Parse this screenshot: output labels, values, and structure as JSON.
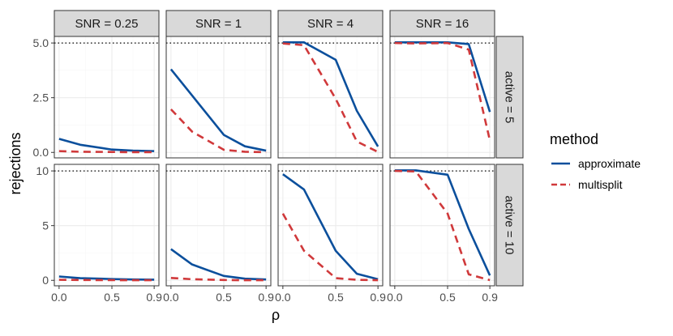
{
  "chart_data": {
    "type": "line",
    "xlabel": "ρ",
    "ylabel": "rejections",
    "x": [
      0.0,
      0.2,
      0.5,
      0.7,
      0.9
    ],
    "x_tick_labels": [
      "0.0",
      "0.5",
      "0.9"
    ],
    "x_ticks": [
      0.0,
      0.5,
      0.9
    ],
    "columns": [
      "SNR = 0.25",
      "SNR = 1",
      "SNR = 4",
      "SNR = 16"
    ],
    "rows": [
      {
        "label": "active = 5",
        "ylim": [
          -0.25,
          5.3
        ],
        "yticks": [
          0.0,
          2.5,
          5.0
        ],
        "ytick_labels": [
          "0.0",
          "2.5",
          "5.0"
        ],
        "reference": 5
      },
      {
        "label": "active = 10",
        "ylim": [
          -0.5,
          10.6
        ],
        "yticks": [
          0,
          5,
          10
        ],
        "ytick_labels": [
          "0",
          "5",
          "10"
        ],
        "reference": 10
      }
    ],
    "legend": {
      "title": "method",
      "position": "right",
      "entries": [
        {
          "name": "approximate",
          "color": "#0b4f9c",
          "dash": "solid"
        },
        {
          "name": "multisplit",
          "color": "#d0393b",
          "dash": "dashed"
        }
      ]
    },
    "panels": [
      {
        "row": 0,
        "col": 0,
        "approximate": [
          0.62,
          0.35,
          0.13,
          0.08,
          0.06
        ],
        "multisplit": [
          0.06,
          0.03,
          0.02,
          0.01,
          0.01
        ]
      },
      {
        "row": 0,
        "col": 1,
        "approximate": [
          3.8,
          2.6,
          0.8,
          0.28,
          0.08
        ],
        "multisplit": [
          1.97,
          0.95,
          0.12,
          0.03,
          0.01
        ]
      },
      {
        "row": 0,
        "col": 2,
        "approximate": [
          5.03,
          5.03,
          4.23,
          1.9,
          0.27
        ],
        "multisplit": [
          4.98,
          4.9,
          2.45,
          0.5,
          0.02
        ]
      },
      {
        "row": 0,
        "col": 3,
        "approximate": [
          5.03,
          5.03,
          5.03,
          4.95,
          1.85
        ],
        "multisplit": [
          5.0,
          4.98,
          5.0,
          4.7,
          0.55
        ]
      },
      {
        "row": 1,
        "col": 0,
        "approximate": [
          0.35,
          0.2,
          0.12,
          0.08,
          0.06
        ],
        "multisplit": [
          0.05,
          0.03,
          0.02,
          0.01,
          0.01
        ]
      },
      {
        "row": 1,
        "col": 1,
        "approximate": [
          2.85,
          1.45,
          0.4,
          0.15,
          0.08
        ],
        "multisplit": [
          0.22,
          0.1,
          0.03,
          0.01,
          0.01
        ]
      },
      {
        "row": 1,
        "col": 2,
        "approximate": [
          9.7,
          8.3,
          2.7,
          0.6,
          0.1
        ],
        "multisplit": [
          6.1,
          2.7,
          0.2,
          0.05,
          0.01
        ]
      },
      {
        "row": 1,
        "col": 3,
        "approximate": [
          10.05,
          10.05,
          9.65,
          4.7,
          0.45
        ],
        "multisplit": [
          10.0,
          9.95,
          6.1,
          0.55,
          0.02
        ]
      }
    ]
  }
}
